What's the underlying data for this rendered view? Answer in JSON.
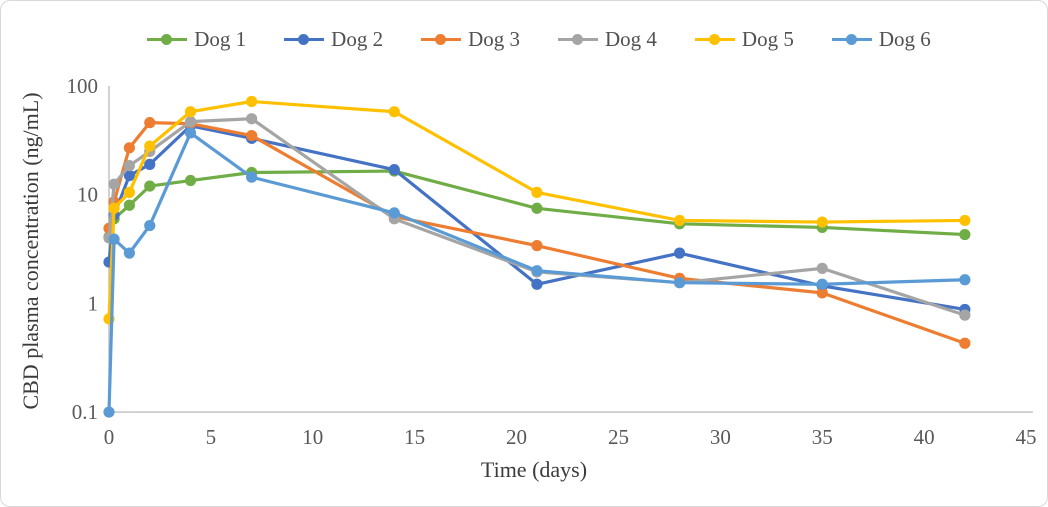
{
  "figure": {
    "background": "#FFFFFF",
    "border_color": "#D9D9D9"
  },
  "chart_data": {
    "type": "line",
    "title": "",
    "xlabel": "Time (days)",
    "ylabel": "CBD plasma concentration (ng/mL)",
    "y_scale": "log",
    "xlim": [
      0,
      45
    ],
    "ylim": [
      0.1,
      100
    ],
    "grid": false,
    "legend_position": "top-center",
    "x_ticks": [
      "0",
      "5",
      "10",
      "15",
      "20",
      "25",
      "30",
      "35",
      "40",
      "45"
    ],
    "y_ticks": [
      "100",
      "10",
      "1",
      "0.1"
    ],
    "axis_color": "#BFBFBF",
    "tick_label_color": "#595959",
    "x": [
      0,
      0.25,
      1,
      2,
      4,
      7,
      14,
      21,
      28,
      35,
      42
    ],
    "series": [
      {
        "name": "Dog 1",
        "color": "#70AD47",
        "values": [
          4.1,
          6.0,
          8.0,
          12,
          13.5,
          16,
          16.5,
          7.5,
          5.4,
          5.0,
          4.3
        ]
      },
      {
        "name": "Dog 2",
        "color": "#4472C4",
        "values": [
          2.4,
          6.5,
          15,
          19,
          43,
          33,
          17,
          1.5,
          2.9,
          1.45,
          0.88
        ]
      },
      {
        "name": "Dog 3",
        "color": "#ED7D31",
        "values": [
          4.9,
          8.6,
          27,
          46,
          45,
          35,
          6.3,
          3.4,
          1.7,
          1.25,
          0.43
        ]
      },
      {
        "name": "Dog 4",
        "color": "#A5A5A5",
        "values": [
          4.0,
          12.5,
          18.5,
          25,
          47,
          50,
          6.0,
          1.95,
          1.55,
          2.1,
          0.78
        ]
      },
      {
        "name": "Dog 5",
        "color": "#FFC000",
        "values": [
          0.72,
          7.5,
          10.5,
          28,
          58,
          72,
          58,
          10.5,
          5.8,
          5.6,
          5.8
        ]
      },
      {
        "name": "Dog 6",
        "color": "#5B9BD5",
        "values": [
          0.1,
          3.9,
          2.9,
          5.2,
          37,
          14.5,
          6.8,
          2.0,
          1.55,
          1.5,
          1.65
        ]
      }
    ]
  }
}
